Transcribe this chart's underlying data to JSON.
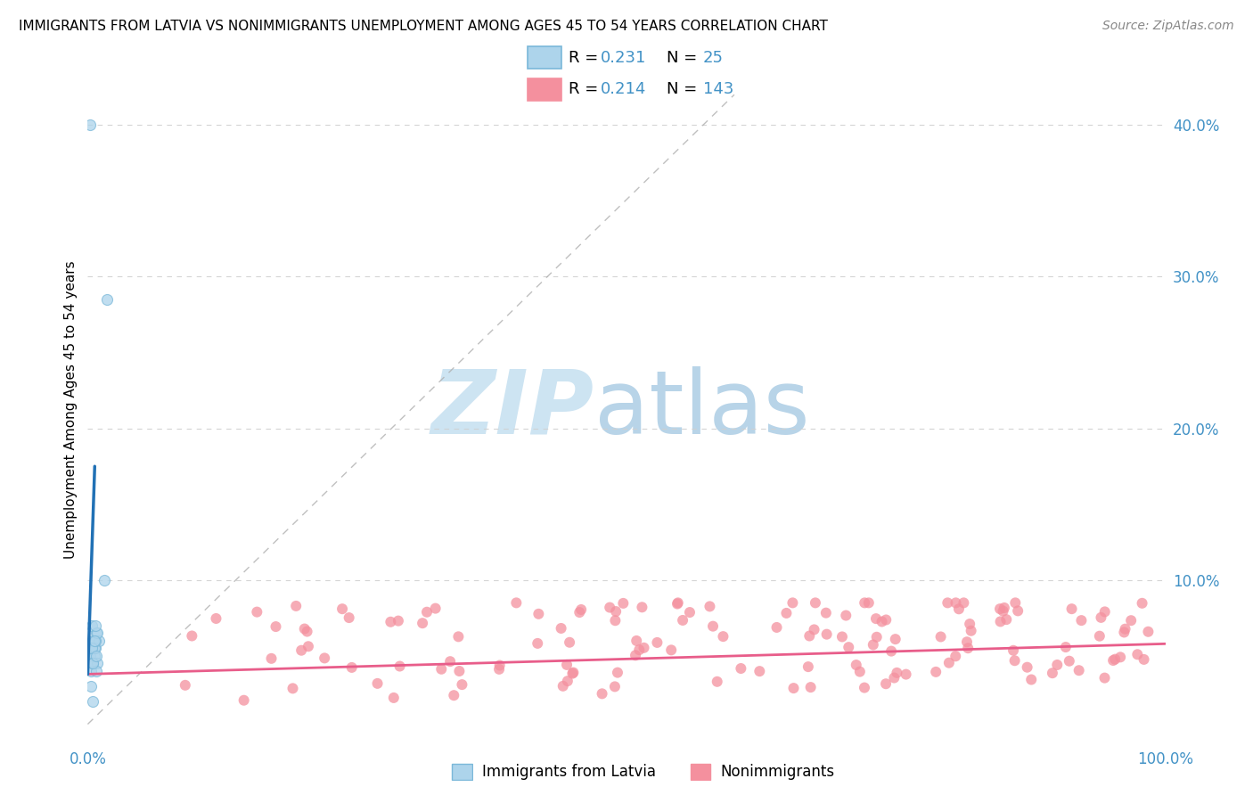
{
  "title": "IMMIGRANTS FROM LATVIA VS NONIMMIGRANTS UNEMPLOYMENT AMONG AGES 45 TO 54 YEARS CORRELATION CHART",
  "source": "Source: ZipAtlas.com",
  "ylabel": "Unemployment Among Ages 45 to 54 years",
  "xmin": 0.0,
  "xmax": 1.0,
  "ymin": -0.005,
  "ymax": 0.43,
  "color_blue": "#7ab8d9",
  "color_blue_fill": "#add4eb",
  "color_pink": "#f4909e",
  "color_blue_text": "#4292c6",
  "legend_r1": "0.231",
  "legend_n1": "25",
  "legend_r2": "0.214",
  "legend_n2": "143",
  "watermark_zip": "ZIP",
  "watermark_atlas": "atlas"
}
